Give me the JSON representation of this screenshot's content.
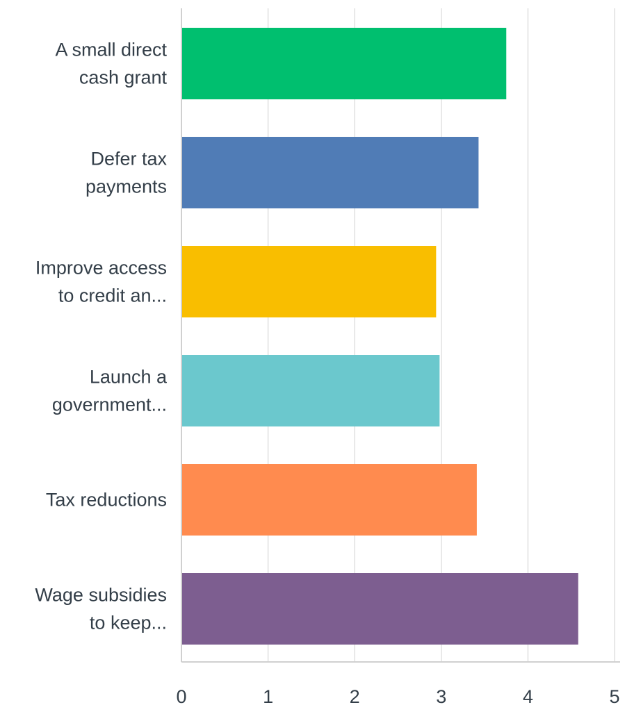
{
  "chart_data": {
    "type": "bar",
    "orientation": "horizontal",
    "categories": [
      [
        "A small direct",
        "cash grant"
      ],
      [
        "Defer tax",
        "payments"
      ],
      [
        "Improve access",
        "to credit an..."
      ],
      [
        "Launch a",
        "government..."
      ],
      [
        "Tax reductions"
      ],
      [
        "Wage subsidies",
        "to keep..."
      ]
    ],
    "values": [
      3.75,
      3.43,
      2.94,
      2.98,
      3.41,
      4.58
    ],
    "colors": [
      "#00bf6f",
      "#507cb6",
      "#f9be00",
      "#6bc8cd",
      "#ff8b4f",
      "#7d5e90"
    ],
    "x_ticks": [
      "0",
      "1",
      "2",
      "3",
      "4",
      "5"
    ],
    "xlim": [
      0,
      5
    ],
    "grid": true,
    "title": "",
    "xlabel": "",
    "ylabel": ""
  }
}
